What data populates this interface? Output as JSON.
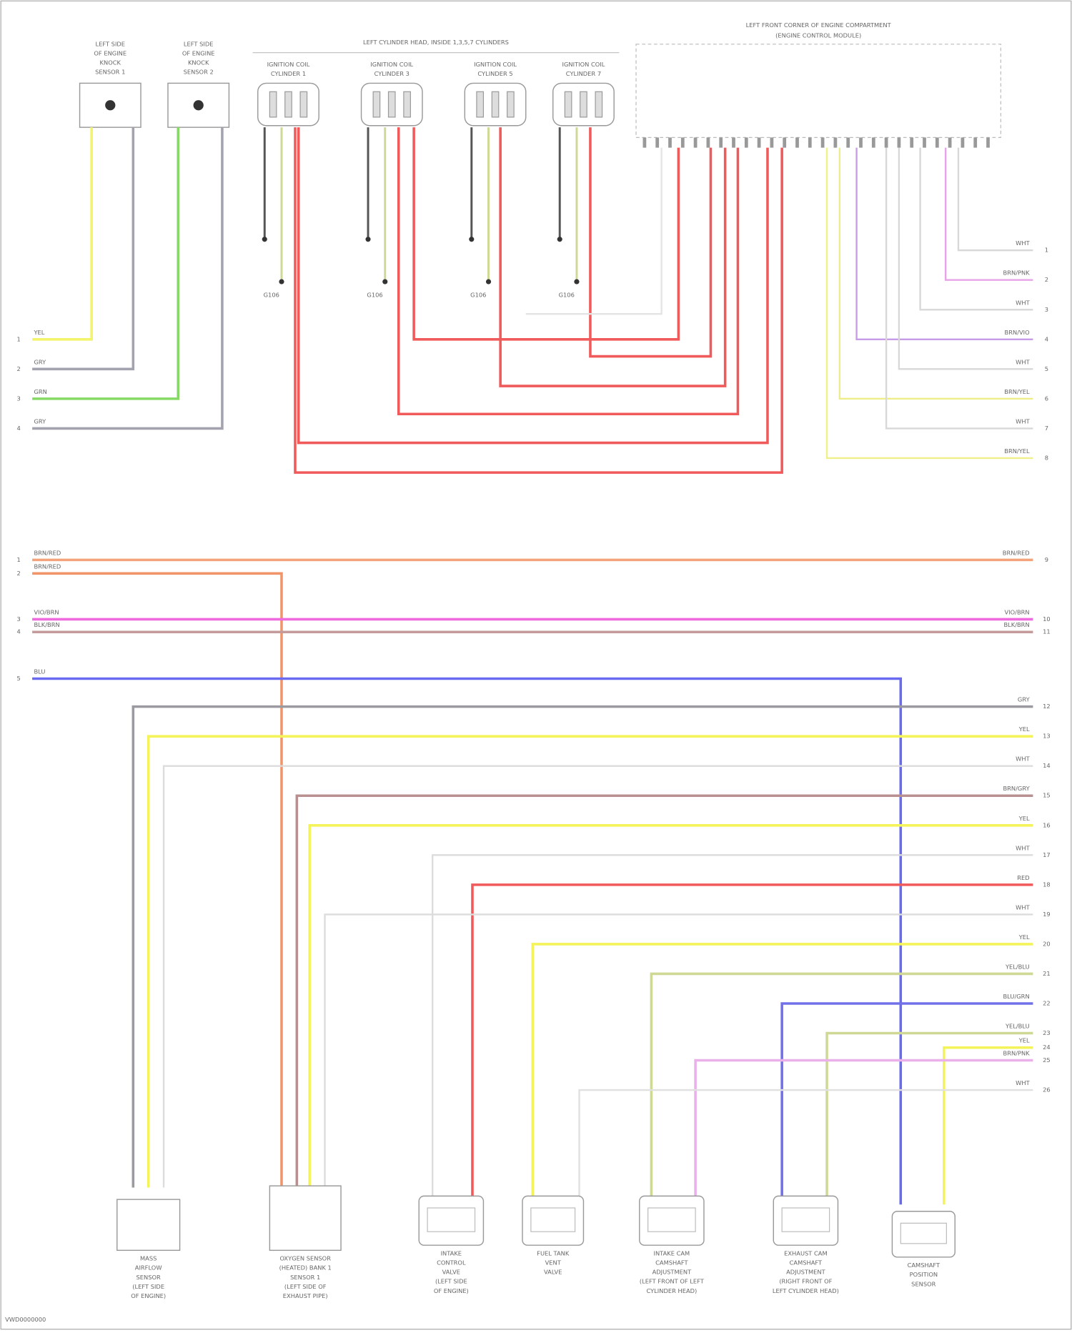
{
  "top": {
    "knock_sensors": [
      {
        "lines": [
          "LEFT SIDE",
          "OF ENGINE",
          "KNOCK",
          "SENSOR 1"
        ]
      },
      {
        "lines": [
          "LEFT SIDE",
          "OF ENGINE",
          "KNOCK",
          "SENSOR 2"
        ]
      }
    ],
    "coil_group": "LEFT CYLINDER HEAD, INSIDE 1,3,5,7 CYLINDERS",
    "coils": [
      {
        "lines": [
          "IGNITION COIL",
          "CYLINDER 1"
        ],
        "ground": "G106"
      },
      {
        "lines": [
          "IGNITION COIL",
          "CYLINDER 3"
        ],
        "ground": "G106"
      },
      {
        "lines": [
          "IGNITION COIL",
          "CYLINDER 5"
        ],
        "ground": "G106"
      },
      {
        "lines": [
          "IGNITION COIL",
          "CYLINDER 7"
        ],
        "ground": "G106"
      }
    ],
    "ecm": {
      "lines": [
        "LEFT FRONT CORNER OF ENGINE COMPARTMENT",
        "(ENGINE CONTROL MODULE)"
      ]
    }
  },
  "left_wires": [
    {
      "label": "YEL",
      "terminal": "1",
      "color": "#f4f46a"
    },
    {
      "label": "GRY",
      "terminal": "2",
      "color": "#a3a3b0"
    },
    {
      "label": "GRN",
      "terminal": "3",
      "color": "#86d964"
    },
    {
      "label": "GRY",
      "terminal": "4",
      "color": "#a3a3b0"
    }
  ],
  "ecm_right_wires": [
    {
      "label": "WHT",
      "terminal": "1",
      "color": "#d8d8d8"
    },
    {
      "label": "BRN/PNK",
      "terminal": "2",
      "color": "#e7a3e7"
    },
    {
      "label": "WHT",
      "terminal": "3",
      "color": "#d8d8d8"
    },
    {
      "label": "BRN/VIO",
      "terminal": "4",
      "color": "#c79be6"
    },
    {
      "label": "WHT",
      "terminal": "5",
      "color": "#d8d8d8"
    },
    {
      "label": "BRN/YEL",
      "terminal": "6",
      "color": "#eded8a"
    },
    {
      "label": "WHT",
      "terminal": "7",
      "color": "#d8d8d8"
    },
    {
      "label": "BRN/YEL",
      "terminal": "8",
      "color": "#f0f08a"
    }
  ],
  "through_wires": [
    {
      "label": "BRN/RED",
      "terminal_left": "1",
      "terminal_right": "9",
      "color": "#f3a27a"
    },
    {
      "label": "BRN/RED",
      "terminal_left": "2",
      "color": "#f0956a"
    },
    {
      "label": "VIO/BRN",
      "terminal_left": "3",
      "terminal_right": "10",
      "color": "#f06adf"
    },
    {
      "label": "BLK/BRN",
      "terminal_left": "4",
      "terminal_right": "11",
      "color": "#c49a9a"
    },
    {
      "label": "BLU",
      "terminal_left": "5",
      "color": "#6a6af0"
    }
  ],
  "lower_wires": [
    {
      "label": "GRY",
      "terminal": "12",
      "color": "#9a9aa0"
    },
    {
      "label": "YEL",
      "terminal": "13",
      "color": "#f4f45a"
    },
    {
      "label": "WHT",
      "terminal": "14",
      "color": "#dcdcdc"
    },
    {
      "label": "BRN/GRY",
      "terminal": "15",
      "color": "#b89090"
    },
    {
      "label": "YEL",
      "terminal": "16",
      "color": "#f4f45a"
    },
    {
      "label": "WHT",
      "terminal": "17",
      "color": "#dcdcdc"
    },
    {
      "label": "RED",
      "terminal": "18",
      "color": "#f05a5a"
    },
    {
      "label": "WHT",
      "terminal": "19",
      "color": "#dcdcdc"
    },
    {
      "label": "YEL",
      "terminal": "20",
      "color": "#f4f45a"
    },
    {
      "label": "YEL/BLU",
      "terminal": "21",
      "color": "#cfd894"
    },
    {
      "label": "BLU/GRN",
      "terminal": "22",
      "color": "#7070e8"
    },
    {
      "label": "YEL/BLU",
      "terminal": "23",
      "color": "#cfd894"
    },
    {
      "label": "YEL",
      "terminal": "24",
      "color": "#f4f45a"
    },
    {
      "label": "BRN/PNK",
      "terminal": "25",
      "color": "#eab0ea"
    },
    {
      "label": "WHT",
      "terminal": "26",
      "color": "#e0e0e0"
    }
  ],
  "bottom_components": [
    {
      "lines": [
        "MASS",
        "AIRFLOW",
        "SENSOR",
        "(LEFT SIDE",
        "OF ENGINE)"
      ]
    },
    {
      "lines": [
        "OXYGEN SENSOR",
        "(HEATED) BANK 1",
        "SENSOR 1",
        "(LEFT SIDE OF",
        "EXHAUST PIPE)"
      ]
    },
    {
      "lines": [
        "INTAKE",
        "CONTROL",
        "VALVE",
        "(LEFT SIDE",
        "OF ENGINE)"
      ]
    },
    {
      "lines": [
        "FUEL TANK",
        "VENT",
        "VALVE"
      ]
    },
    {
      "lines": [
        "INTAKE CAM",
        "CAMSHAFT",
        "ADJUSTMENT",
        "(LEFT FRONT OF LEFT",
        "CYLINDER HEAD)"
      ]
    },
    {
      "lines": [
        "EXHAUST CAM",
        "CAMSHAFT",
        "ADJUSTMENT",
        "(RIGHT FRONT OF",
        "LEFT CYLINDER HEAD)"
      ]
    },
    {
      "lines": [
        "CAMSHAFT",
        "POSITION",
        "SENSOR"
      ]
    }
  ],
  "footer": "VWD0000000"
}
